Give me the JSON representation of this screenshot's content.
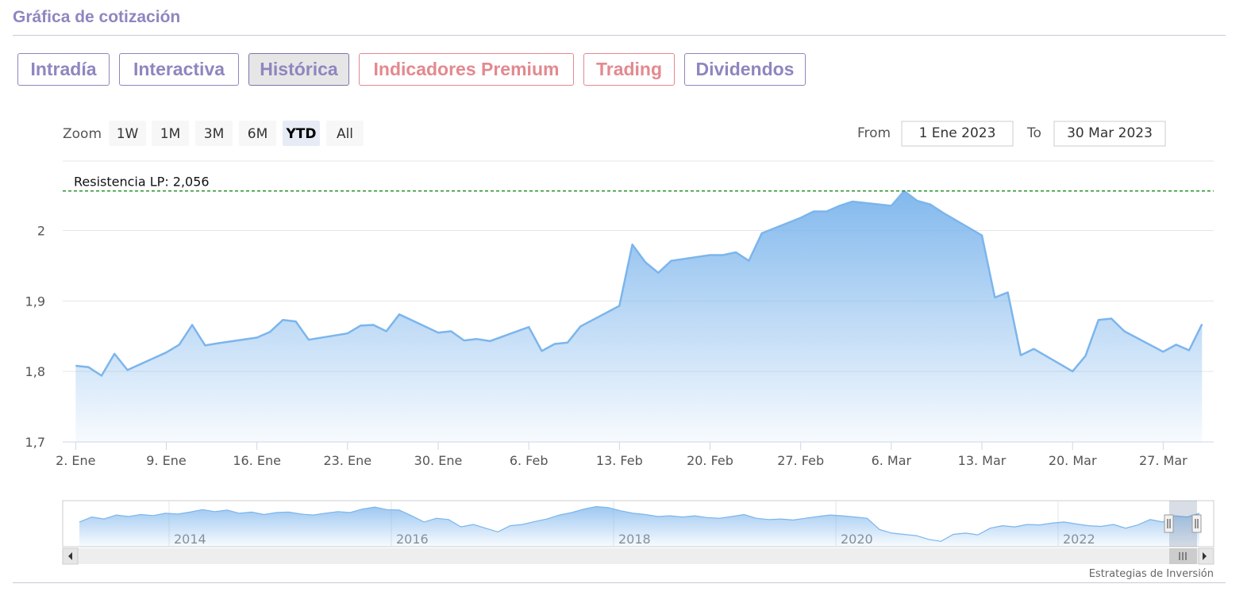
{
  "header": {
    "title": "Gráfica de cotización"
  },
  "tabs": [
    {
      "label": "Intradía",
      "active": false,
      "style": "normal"
    },
    {
      "label": "Interactiva",
      "active": false,
      "style": "normal"
    },
    {
      "label": "Histórica",
      "active": true,
      "style": "normal"
    },
    {
      "label": "Indicadores Premium",
      "active": false,
      "style": "premium"
    },
    {
      "label": "Trading",
      "active": false,
      "style": "premium"
    },
    {
      "label": "Dividendos",
      "active": false,
      "style": "normal"
    }
  ],
  "zoom": {
    "label": "Zoom",
    "buttons": [
      "1W",
      "1M",
      "3M",
      "6M",
      "YTD",
      "All"
    ],
    "selected": "YTD"
  },
  "range": {
    "from_label": "From",
    "from_value": "1 Ene 2023",
    "to_label": "To",
    "to_value": "30 Mar 2023"
  },
  "credit": "Estrategias de Inversión",
  "colors": {
    "brand": "#8f86bf",
    "premium": "#e3898f",
    "series": "#7cb5ec",
    "resistance": "#1a8a1a"
  },
  "chart_data": {
    "type": "area",
    "x_dates": [
      "2023-01-02",
      "2023-01-03",
      "2023-01-04",
      "2023-01-05",
      "2023-01-06",
      "2023-01-09",
      "2023-01-10",
      "2023-01-11",
      "2023-01-12",
      "2023-01-13",
      "2023-01-16",
      "2023-01-17",
      "2023-01-18",
      "2023-01-19",
      "2023-01-20",
      "2023-01-23",
      "2023-01-24",
      "2023-01-25",
      "2023-01-26",
      "2023-01-27",
      "2023-01-30",
      "2023-01-31",
      "2023-02-01",
      "2023-02-02",
      "2023-02-03",
      "2023-02-06",
      "2023-02-07",
      "2023-02-08",
      "2023-02-09",
      "2023-02-10",
      "2023-02-13",
      "2023-02-14",
      "2023-02-15",
      "2023-02-16",
      "2023-02-17",
      "2023-02-20",
      "2023-02-21",
      "2023-02-22",
      "2023-02-23",
      "2023-02-24",
      "2023-02-27",
      "2023-02-28",
      "2023-03-01",
      "2023-03-02",
      "2023-03-03",
      "2023-03-06",
      "2023-03-07",
      "2023-03-08",
      "2023-03-09",
      "2023-03-10",
      "2023-03-13",
      "2023-03-14",
      "2023-03-15",
      "2023-03-16",
      "2023-03-17",
      "2023-03-20",
      "2023-03-21",
      "2023-03-22",
      "2023-03-23",
      "2023-03-24",
      "2023-03-27",
      "2023-03-28",
      "2023-03-29",
      "2023-03-30"
    ],
    "values": [
      1.808,
      1.806,
      1.794,
      1.825,
      1.802,
      1.827,
      1.838,
      1.866,
      1.837,
      1.84,
      1.848,
      1.856,
      1.873,
      1.871,
      1.845,
      1.854,
      1.865,
      1.866,
      1.857,
      1.881,
      1.855,
      1.857,
      1.844,
      1.846,
      1.843,
      1.863,
      1.829,
      1.839,
      1.841,
      1.864,
      1.893,
      1.98,
      1.955,
      1.94,
      1.957,
      1.965,
      1.965,
      1.969,
      1.957,
      1.996,
      2.018,
      2.027,
      2.027,
      2.035,
      2.041,
      2.035,
      2.056,
      2.042,
      2.037,
      2.025,
      1.993,
      1.905,
      1.912,
      1.823,
      1.832,
      1.8,
      1.822,
      1.873,
      1.875,
      1.857,
      1.828,
      1.838,
      1.83,
      1.867
    ],
    "yticks": [
      "1,7",
      "1,8",
      "1,9",
      "2"
    ],
    "ylim": [
      1.7,
      2.1
    ],
    "xticks": [
      "2. Ene",
      "9. Ene",
      "16. Ene",
      "23. Ene",
      "30. Ene",
      "6. Feb",
      "13. Feb",
      "20. Feb",
      "27. Feb",
      "6. Mar",
      "13. Mar",
      "20. Mar",
      "27. Mar"
    ],
    "resistance": {
      "label": "Resistencia LP: 2,056",
      "value": 2.056
    },
    "grid": true,
    "navigator": {
      "year_labels": [
        "2014",
        "2016",
        "2018",
        "2020",
        "2022"
      ],
      "values": [
        1.7,
        1.9,
        1.82,
        1.98,
        1.92,
        2.0,
        1.96,
        2.05,
        2.02,
        2.1,
        2.2,
        2.12,
        2.18,
        2.05,
        2.1,
        2.0,
        2.08,
        2.1,
        2.02,
        1.98,
        2.05,
        2.12,
        2.08,
        2.22,
        2.3,
        2.2,
        2.18,
        1.95,
        1.7,
        1.85,
        1.8,
        1.5,
        1.6,
        1.45,
        1.3,
        1.55,
        1.6,
        1.72,
        1.82,
        1.98,
        2.08,
        2.22,
        2.32,
        2.28,
        2.15,
        2.05,
        2.0,
        1.92,
        1.95,
        1.9,
        1.95,
        1.88,
        1.85,
        1.92,
        2.0,
        1.85,
        1.8,
        1.82,
        1.78,
        1.85,
        1.92,
        1.98,
        1.95,
        1.9,
        1.85,
        1.4,
        1.25,
        1.2,
        1.15,
        1.0,
        0.92,
        1.2,
        1.25,
        1.18,
        1.45,
        1.55,
        1.5,
        1.6,
        1.58,
        1.65,
        1.7,
        1.62,
        1.55,
        1.52,
        1.6,
        1.45,
        1.58,
        1.8,
        1.7,
        1.95,
        1.9,
        2.05
      ]
    }
  }
}
